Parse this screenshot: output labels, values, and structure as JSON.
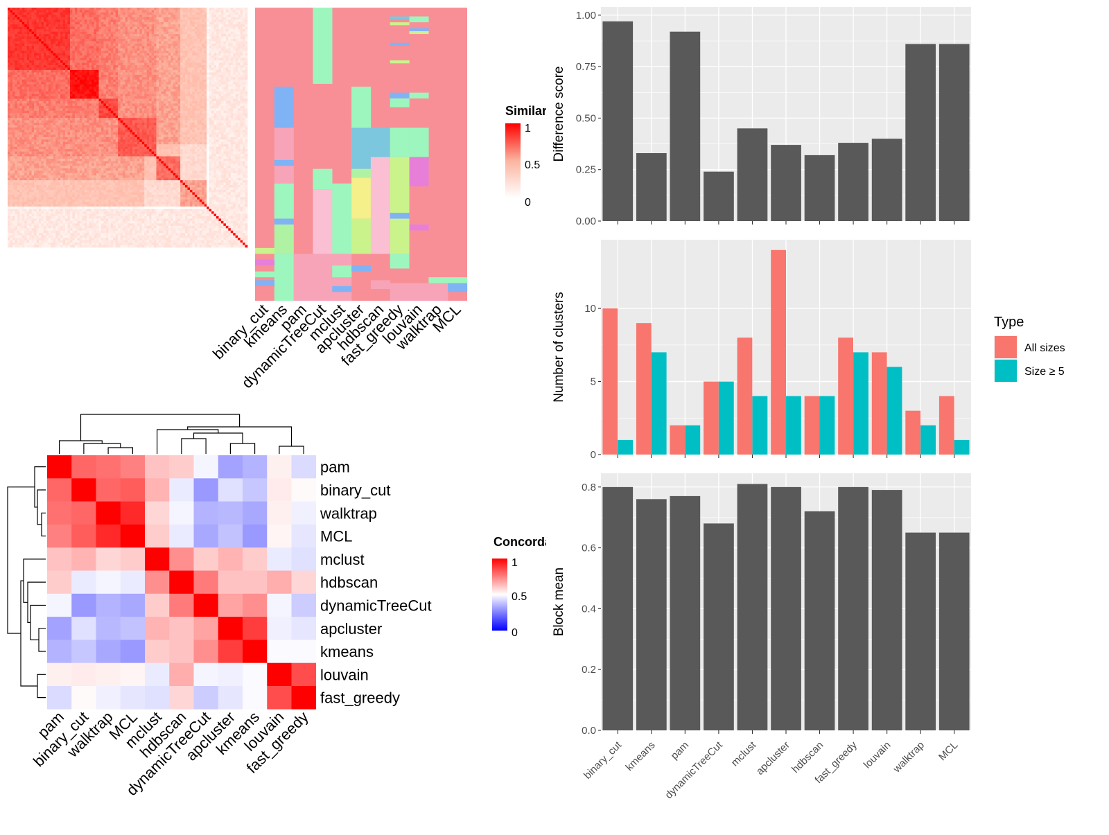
{
  "methods_sim": [
    "binary_cut",
    "kmeans",
    "pam",
    "dynamicTreeCut",
    "mclust",
    "apcluster",
    "hdbscan",
    "fast_greedy",
    "louvain",
    "walktrap",
    "MCL"
  ],
  "similarity_legend": {
    "title": "Similarity",
    "ticks": [
      "1",
      "0.5",
      "0"
    ]
  },
  "similarity_matrix_blocks": [
    {
      "from": 0.0,
      "to": 0.26,
      "value": 0.85
    },
    {
      "from": 0.26,
      "to": 0.38,
      "value": 0.95
    },
    {
      "from": 0.38,
      "to": 0.46,
      "value": 0.8
    },
    {
      "from": 0.46,
      "to": 0.62,
      "value": 0.75
    },
    {
      "from": 0.62,
      "to": 0.72,
      "value": 0.7
    },
    {
      "from": 0.72,
      "to": 0.83,
      "value": 0.55
    },
    {
      "from": 0.83,
      "to": 1.0,
      "value": 0.2
    }
  ],
  "cluster_assignment_colors": [
    "#f88f97",
    "#9df6be",
    "#7fb3f5",
    "#f7a4b8",
    "#cbf38c",
    "#e77fd9",
    "#f5f08a",
    "#7dc7de",
    "#fbbfd3",
    "#b0f2a3"
  ],
  "concordance_legend": {
    "title": "Concordance",
    "ticks": [
      "1",
      "0.5",
      "0"
    ]
  },
  "concordance": {
    "labels": [
      "pam",
      "binary_cut",
      "walktrap",
      "MCL",
      "mclust",
      "hdbscan",
      "dynamicTreeCut",
      "apcluster",
      "kmeans",
      "louvain",
      "fast_greedy"
    ],
    "values": [
      [
        1.0,
        0.8,
        0.78,
        0.75,
        0.62,
        0.6,
        0.48,
        0.32,
        0.35,
        0.53,
        0.43
      ],
      [
        0.8,
        1.0,
        0.8,
        0.82,
        0.65,
        0.46,
        0.3,
        0.44,
        0.39,
        0.54,
        0.51
      ],
      [
        0.78,
        0.8,
        1.0,
        0.92,
        0.58,
        0.48,
        0.35,
        0.36,
        0.33,
        0.53,
        0.47
      ],
      [
        0.75,
        0.82,
        0.92,
        1.0,
        0.6,
        0.46,
        0.33,
        0.38,
        0.3,
        0.52,
        0.45
      ],
      [
        0.62,
        0.65,
        0.58,
        0.6,
        1.0,
        0.72,
        0.6,
        0.65,
        0.6,
        0.46,
        0.44
      ],
      [
        0.6,
        0.46,
        0.48,
        0.46,
        0.72,
        1.0,
        0.76,
        0.62,
        0.62,
        0.66,
        0.58
      ],
      [
        0.48,
        0.3,
        0.35,
        0.33,
        0.6,
        0.76,
        1.0,
        0.68,
        0.72,
        0.48,
        0.4
      ],
      [
        0.32,
        0.44,
        0.36,
        0.38,
        0.65,
        0.62,
        0.68,
        1.0,
        0.88,
        0.47,
        0.45
      ],
      [
        0.35,
        0.39,
        0.33,
        0.3,
        0.6,
        0.62,
        0.72,
        0.88,
        1.0,
        0.49,
        0.49
      ],
      [
        0.53,
        0.54,
        0.53,
        0.52,
        0.46,
        0.66,
        0.48,
        0.47,
        0.49,
        1.0,
        0.85
      ],
      [
        0.43,
        0.51,
        0.47,
        0.45,
        0.44,
        0.58,
        0.4,
        0.45,
        0.49,
        0.85,
        1.0
      ]
    ]
  },
  "chart_data": [
    {
      "type": "bar",
      "categories": [
        "binary_cut",
        "kmeans",
        "pam",
        "dynamicTreeCut",
        "mclust",
        "apcluster",
        "hdbscan",
        "fast_greedy",
        "louvain",
        "walktrap",
        "MCL"
      ],
      "values": [
        0.97,
        0.33,
        0.92,
        0.24,
        0.45,
        0.37,
        0.32,
        0.38,
        0.4,
        0.86,
        0.86
      ],
      "ylabel": "Difference score",
      "ylim": [
        0,
        1.04
      ],
      "yticks": [
        "0.00",
        "0.25",
        "0.50",
        "0.75",
        "1.00"
      ],
      "ytick_values": [
        0,
        0.25,
        0.5,
        0.75,
        1.0
      ],
      "color": "#595959",
      "grid": true
    },
    {
      "type": "bar",
      "categories": [
        "binary_cut",
        "kmeans",
        "pam",
        "dynamicTreeCut",
        "mclust",
        "apcluster",
        "hdbscan",
        "fast_greedy",
        "louvain",
        "walktrap",
        "MCL"
      ],
      "series": [
        {
          "name": "All sizes",
          "color": "#f8766d",
          "values": [
            10,
            9,
            2,
            5,
            8,
            14,
            4,
            8,
            7,
            3,
            4
          ]
        },
        {
          "name": "Size ≥ 5",
          "color": "#00bfc4",
          "values": [
            1,
            7,
            2,
            5,
            4,
            4,
            4,
            7,
            6,
            2,
            1
          ]
        }
      ],
      "ylabel": "Number of clusters",
      "ylim": [
        0,
        14.7
      ],
      "yticks": [
        "0",
        "5",
        "10"
      ],
      "ytick_values": [
        0,
        5,
        10
      ],
      "legend_title": "Type",
      "legend_position": "right",
      "grid": true
    },
    {
      "type": "bar",
      "categories": [
        "binary_cut",
        "kmeans",
        "pam",
        "dynamicTreeCut",
        "mclust",
        "apcluster",
        "hdbscan",
        "fast_greedy",
        "louvain",
        "walktrap",
        "MCL"
      ],
      "values": [
        0.8,
        0.76,
        0.77,
        0.68,
        0.81,
        0.8,
        0.72,
        0.8,
        0.79,
        0.65,
        0.65
      ],
      "ylabel": "Block mean",
      "ylim": [
        0,
        0.845
      ],
      "yticks": [
        "0.0",
        "0.2",
        "0.4",
        "0.6",
        "0.8"
      ],
      "ytick_values": [
        0,
        0.2,
        0.4,
        0.6,
        0.8
      ],
      "color": "#595959",
      "grid": true
    }
  ]
}
